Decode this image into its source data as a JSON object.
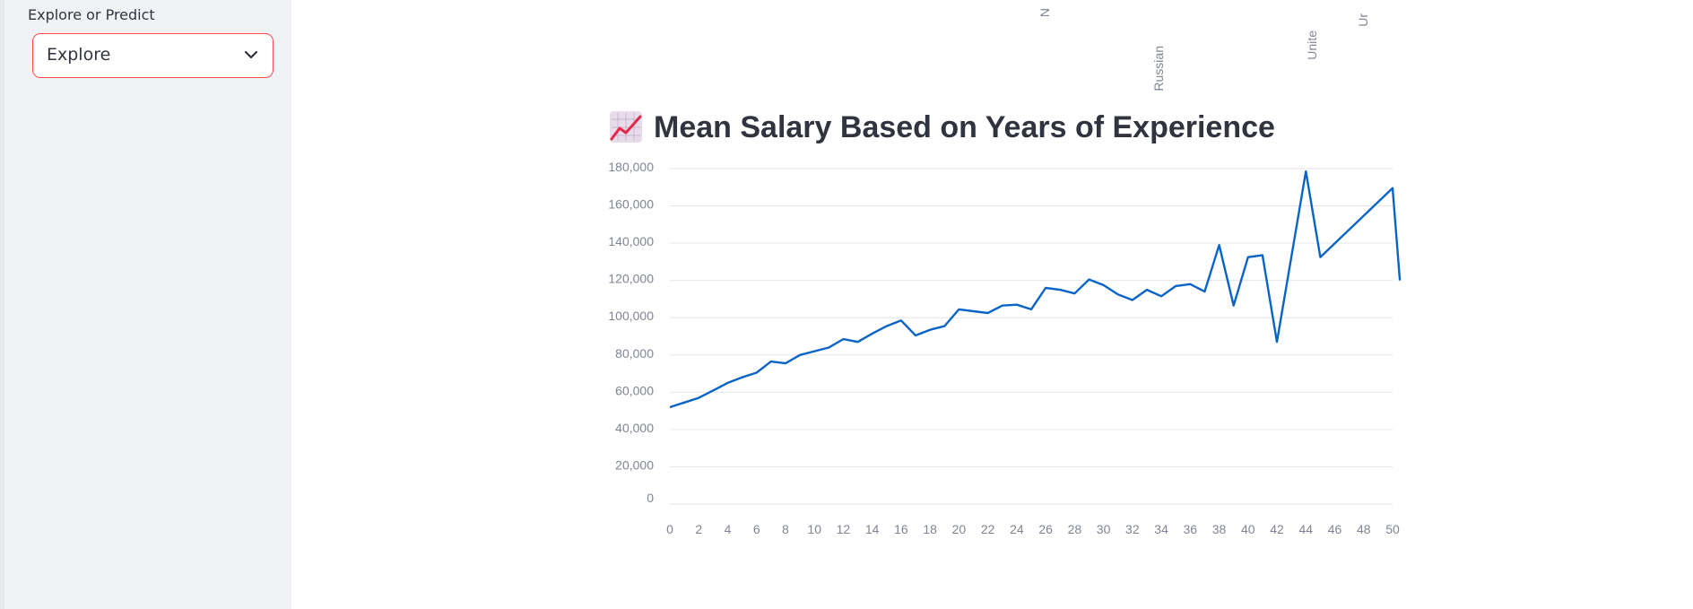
{
  "sidebar": {
    "select_label": "Explore or Predict",
    "select_value": "Explore",
    "select_icon": "chevron-down-icon"
  },
  "top_chart_fragment": {
    "tick_labels": [
      "N",
      "Russian",
      "Unite",
      "Ur"
    ]
  },
  "chart_data": {
    "type": "line",
    "title": "Mean Salary Based on Years of Experience",
    "title_icon": "chart-increasing-icon",
    "xlabel": "",
    "ylabel": "",
    "xlim": [
      0,
      50
    ],
    "ylim": [
      0,
      180000
    ],
    "x_ticks": [
      0,
      2,
      4,
      6,
      8,
      10,
      12,
      14,
      16,
      18,
      20,
      22,
      24,
      26,
      28,
      30,
      32,
      34,
      36,
      38,
      40,
      42,
      44,
      46,
      48,
      50
    ],
    "y_ticks": [
      "0",
      "20,000",
      "40,000",
      "60,000",
      "80,000",
      "100,000",
      "120,000",
      "140,000",
      "160,000",
      "180,000"
    ],
    "y_tick_values": [
      0,
      20000,
      40000,
      60000,
      80000,
      100000,
      120000,
      140000,
      160000,
      180000
    ],
    "grid": true,
    "line_color": "#0a64c8",
    "series": [
      {
        "x": [
          0,
          1,
          2,
          3,
          4,
          5,
          6,
          7,
          8,
          9,
          10,
          11,
          12,
          13,
          14,
          15,
          16,
          17,
          18,
          19,
          20,
          21,
          22,
          23,
          24,
          25,
          26,
          27,
          28,
          29,
          30,
          31,
          32,
          33,
          34,
          35,
          36,
          37,
          38,
          39,
          40,
          41,
          42,
          44,
          45,
          50,
          50.5
        ],
        "values": [
          52000,
          54500,
          57000,
          61000,
          65000,
          68000,
          70500,
          76500,
          75500,
          80000,
          82000,
          84000,
          88500,
          87000,
          91500,
          95500,
          98500,
          90500,
          93500,
          95500,
          104500,
          103500,
          102500,
          106500,
          107000,
          104500,
          116000,
          115000,
          113000,
          120500,
          117500,
          112500,
          109500,
          115000,
          111500,
          117000,
          118000,
          114000,
          139000,
          106500,
          132500,
          133500,
          87000,
          178500,
          132500,
          169500,
          120000
        ]
      }
    ]
  }
}
